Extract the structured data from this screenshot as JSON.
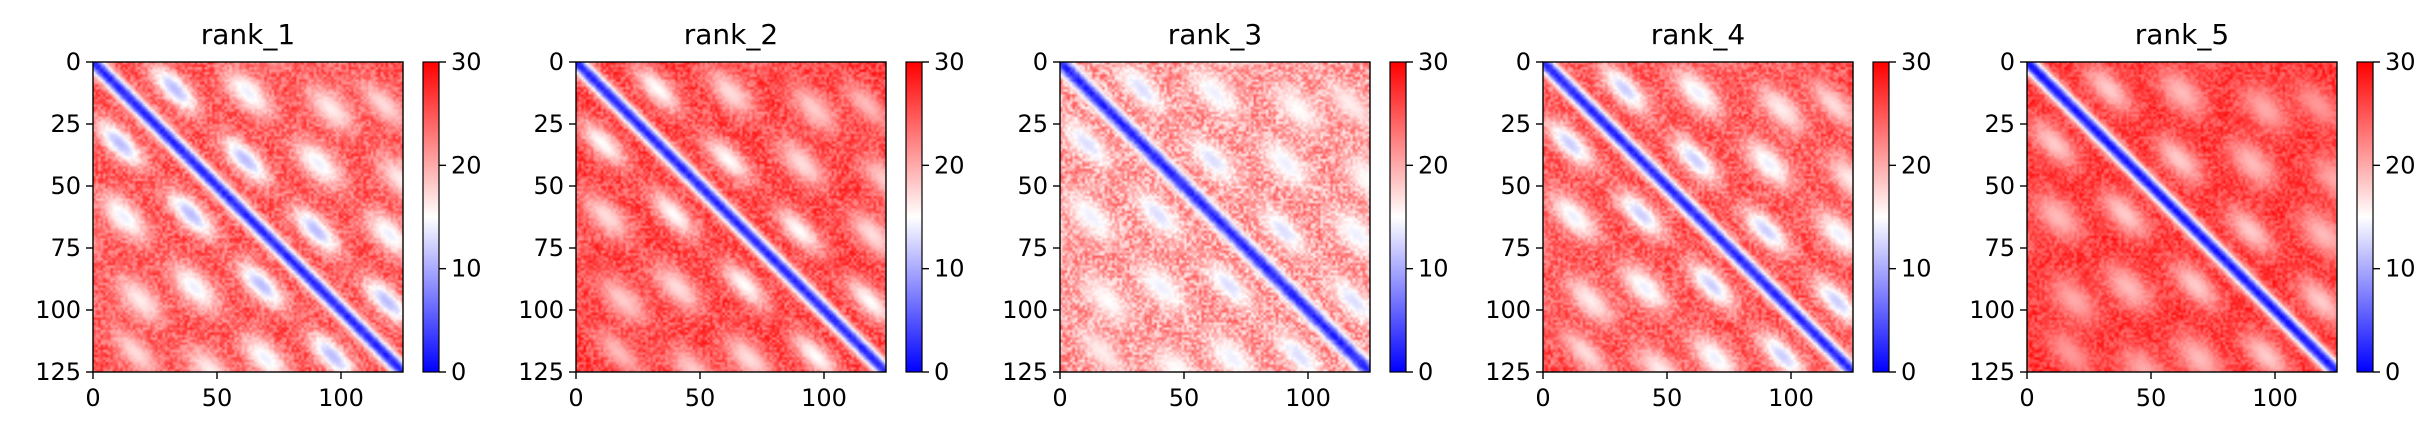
{
  "chart_data": [
    {
      "type": "heatmap",
      "title": "rank_1",
      "xlim": [
        0,
        125
      ],
      "ylim": [
        125,
        0
      ],
      "x_ticks": [
        "0",
        "50",
        "100"
      ],
      "y_ticks": [
        "0",
        "25",
        "50",
        "75",
        "100",
        "125"
      ],
      "colorbar": {
        "ticks": [
          "0",
          "10",
          "20",
          "30"
        ],
        "range": [
          0,
          30
        ],
        "colormap": "bwr"
      },
      "matrix_size": 125,
      "diagonal_value": 2,
      "baseline": 25,
      "noise": 3.5,
      "stripes": [
        {
          "offset": 22,
          "width": 5,
          "level": 11
        },
        {
          "offset": 50,
          "width": 6,
          "level": 14
        },
        {
          "offset": 77,
          "width": 6,
          "level": 16
        },
        {
          "offset": 100,
          "width": 5,
          "level": 17
        }
      ]
    },
    {
      "type": "heatmap",
      "title": "rank_2",
      "xlim": [
        0,
        125
      ],
      "ylim": [
        125,
        0
      ],
      "x_ticks": [
        "0",
        "50",
        "100"
      ],
      "y_ticks": [
        "0",
        "25",
        "50",
        "75",
        "100",
        "125"
      ],
      "colorbar": {
        "ticks": [
          "0",
          "10",
          "20",
          "30"
        ],
        "range": [
          0,
          30
        ],
        "colormap": "bwr"
      },
      "matrix_size": 125,
      "diagonal_value": 2,
      "baseline": 26,
      "noise": 3.5,
      "stripes": [
        {
          "offset": 22,
          "width": 5,
          "level": 15
        },
        {
          "offset": 50,
          "width": 6,
          "level": 17
        },
        {
          "offset": 77,
          "width": 6,
          "level": 18
        },
        {
          "offset": 100,
          "width": 5,
          "level": 19
        }
      ]
    },
    {
      "type": "heatmap",
      "title": "rank_3",
      "xlim": [
        0,
        125
      ],
      "ylim": [
        125,
        0
      ],
      "x_ticks": [
        "0",
        "50",
        "100"
      ],
      "y_ticks": [
        "0",
        "25",
        "50",
        "75",
        "100",
        "125"
      ],
      "colorbar": {
        "ticks": [
          "0",
          "10",
          "20",
          "30"
        ],
        "range": [
          0,
          30
        ],
        "colormap": "bwr"
      },
      "matrix_size": 125,
      "diagonal_value": 2,
      "baseline": 21,
      "noise": 4.5,
      "stripes": [
        {
          "offset": 22,
          "width": 5,
          "level": 13
        },
        {
          "offset": 50,
          "width": 6,
          "level": 14
        },
        {
          "offset": 77,
          "width": 6,
          "level": 15
        },
        {
          "offset": 100,
          "width": 5,
          "level": 16
        }
      ]
    },
    {
      "type": "heatmap",
      "title": "rank_4",
      "xlim": [
        0,
        125
      ],
      "ylim": [
        125,
        0
      ],
      "x_ticks": [
        "0",
        "50",
        "100"
      ],
      "y_ticks": [
        "0",
        "25",
        "50",
        "75",
        "100",
        "125"
      ],
      "colorbar": {
        "ticks": [
          "0",
          "10",
          "20",
          "30"
        ],
        "range": [
          0,
          30
        ],
        "colormap": "bwr"
      },
      "matrix_size": 125,
      "diagonal_value": 2,
      "baseline": 25,
      "noise": 3.5,
      "stripes": [
        {
          "offset": 22,
          "width": 5,
          "level": 12
        },
        {
          "offset": 50,
          "width": 6,
          "level": 14
        },
        {
          "offset": 77,
          "width": 6,
          "level": 16
        },
        {
          "offset": 100,
          "width": 5,
          "level": 17
        }
      ]
    },
    {
      "type": "heatmap",
      "title": "rank_5",
      "xlim": [
        0,
        125
      ],
      "ylim": [
        125,
        0
      ],
      "x_ticks": [
        "0",
        "50",
        "100"
      ],
      "y_ticks": [
        "0",
        "25",
        "50",
        "75",
        "100",
        "125"
      ],
      "colorbar": {
        "ticks": [
          "0",
          "10",
          "20",
          "30"
        ],
        "range": [
          0,
          30
        ],
        "colormap": "bwr"
      },
      "matrix_size": 125,
      "diagonal_value": 1,
      "baseline": 27,
      "noise": 3,
      "stripes": [
        {
          "offset": 22,
          "width": 6,
          "level": 18
        },
        {
          "offset": 50,
          "width": 7,
          "level": 19
        },
        {
          "offset": 77,
          "width": 7,
          "level": 20
        },
        {
          "offset": 100,
          "width": 6,
          "level": 21
        }
      ]
    }
  ]
}
